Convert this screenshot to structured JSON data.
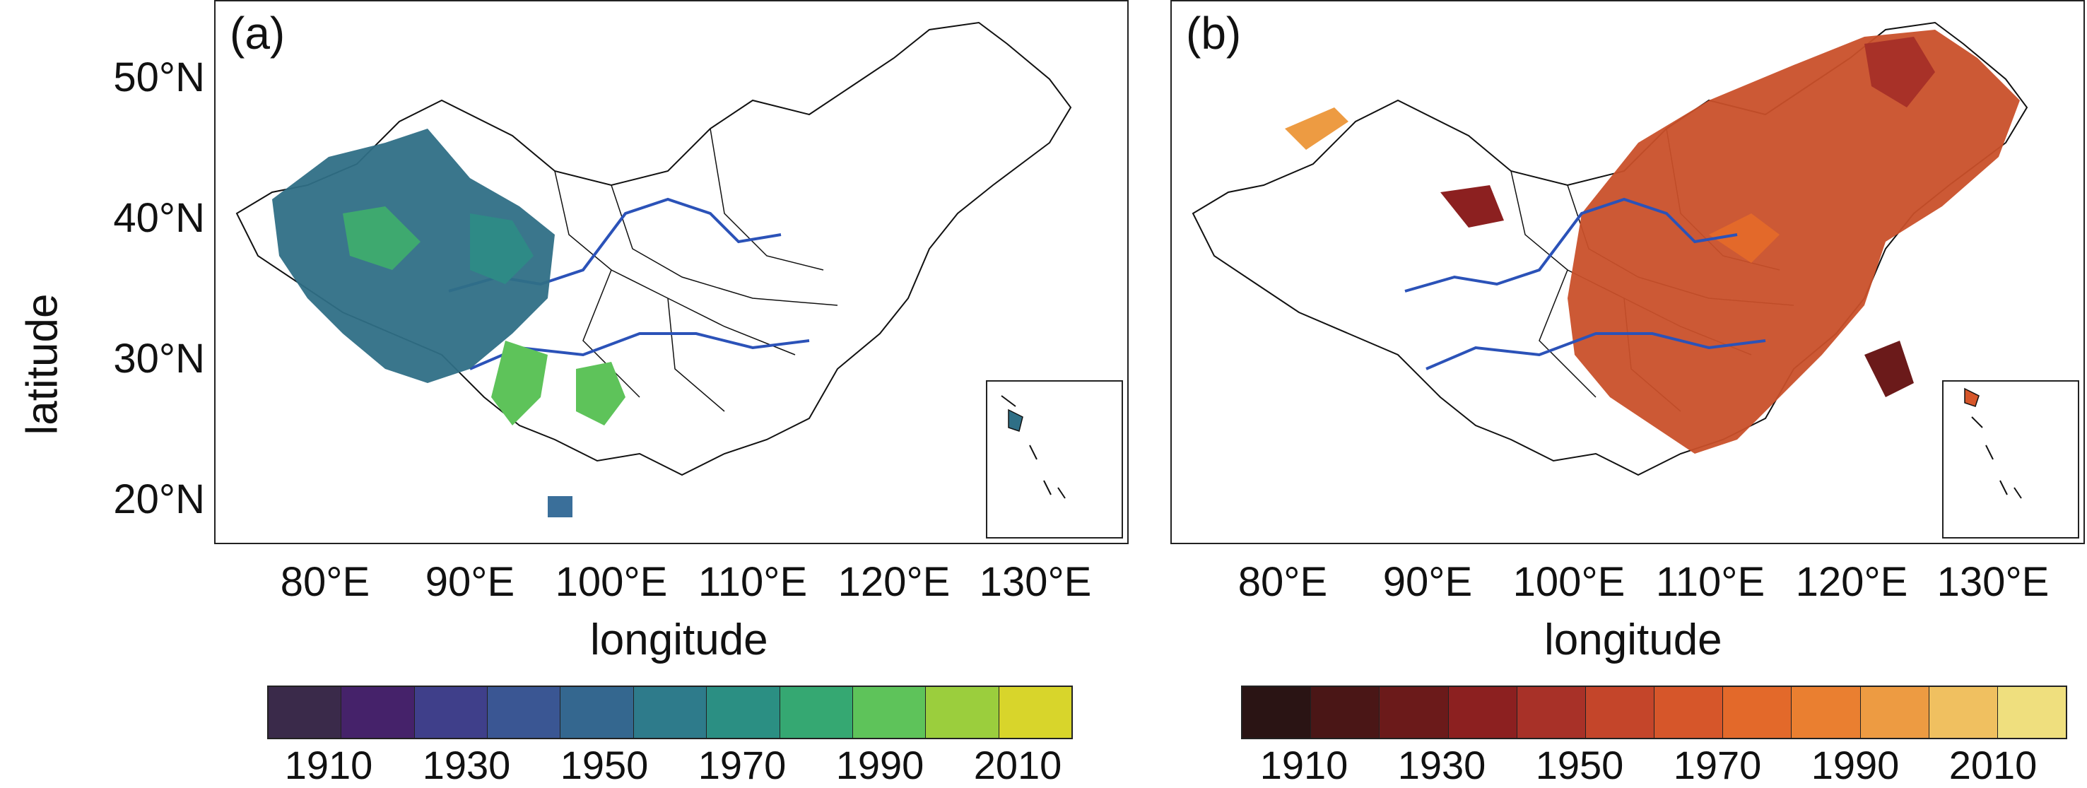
{
  "panels": [
    {
      "label": "(a)"
    },
    {
      "label": "(b)"
    }
  ],
  "axes": {
    "ylabel": "latitude",
    "xlabel": "longitude",
    "yticks": [
      "50°N",
      "40°N",
      "30°N",
      "20°N"
    ],
    "xticks": [
      "80°E",
      "90°E",
      "100°E",
      "110°E",
      "120°E",
      "130°E"
    ]
  },
  "colorbars": [
    {
      "ticks": [
        "1910",
        "1930",
        "1950",
        "1970",
        "1990",
        "2010"
      ],
      "colors": [
        "#3a2a4a",
        "#45226a",
        "#3f3f8a",
        "#3a5693",
        "#34678f",
        "#2e7b8b",
        "#2b8f83",
        "#35a872",
        "#5ec35a",
        "#9bce3d",
        "#d8d52b"
      ]
    },
    {
      "ticks": [
        "1910",
        "1930",
        "1950",
        "1970",
        "1990",
        "2010"
      ],
      "colors": [
        "#2a1414",
        "#4a1616",
        "#6b1a1a",
        "#8c2020",
        "#a83128",
        "#c4452a",
        "#d6562a",
        "#e3692a",
        "#ea7f30",
        "#ed9b42",
        "#f0c060",
        "#efdf7e"
      ]
    }
  ]
}
